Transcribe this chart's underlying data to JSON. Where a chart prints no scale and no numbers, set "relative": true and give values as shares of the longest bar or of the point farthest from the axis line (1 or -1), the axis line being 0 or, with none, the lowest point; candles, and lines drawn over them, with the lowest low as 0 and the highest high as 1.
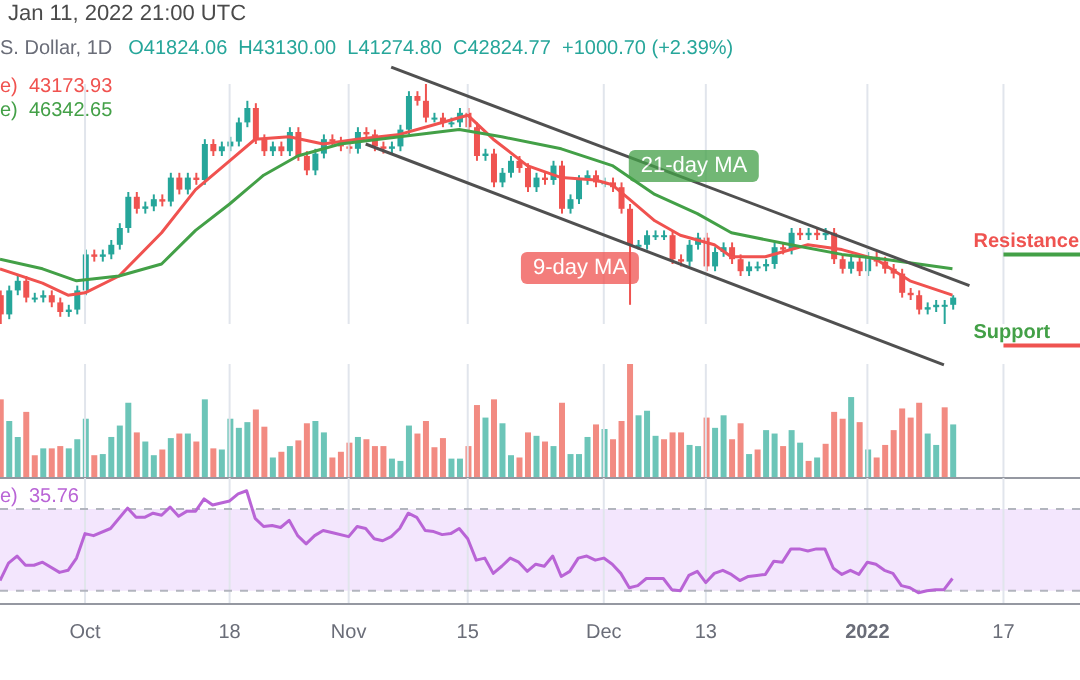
{
  "chart_data": [
    {
      "type": "candlestick",
      "relative": true,
      "title": "Jan 11, 2022 21:00 UTC",
      "subtitle": "S. Dollar, 1D",
      "annotations": [
        "O41824.06  H43130.00  L41274.80  C42824.77  +1000.70 (+2.39%)",
        "e)  43173.93",
        "e)  46342.65",
        "9-day MA",
        "21-day MA"
      ],
      "x": [
        "2021-09-21",
        "2021-09-22",
        "2021-09-23",
        "2021-09-24",
        "2021-09-25",
        "2021-09-26",
        "2021-09-27",
        "2021-09-28",
        "2021-09-29",
        "2021-09-30",
        "2021-10-01",
        "2021-10-02",
        "2021-10-03",
        "2021-10-04",
        "2021-10-05",
        "2021-10-06",
        "2021-10-07",
        "2021-10-08",
        "2021-10-09",
        "2021-10-10",
        "2021-10-11",
        "2021-10-12",
        "2021-10-13",
        "2021-10-14",
        "2021-10-15",
        "2021-10-16",
        "2021-10-17",
        "2021-10-18",
        "2021-10-19",
        "2021-10-20",
        "2021-10-21",
        "2021-10-22",
        "2021-10-23",
        "2021-10-24",
        "2021-10-25",
        "2021-10-26",
        "2021-10-27",
        "2021-10-28",
        "2021-10-29",
        "2021-10-30",
        "2021-10-31",
        "2021-11-01",
        "2021-11-02",
        "2021-11-03",
        "2021-11-04",
        "2021-11-05",
        "2021-11-06",
        "2021-11-07",
        "2021-11-08",
        "2021-11-09",
        "2021-11-10",
        "2021-11-11",
        "2021-11-12",
        "2021-11-13",
        "2021-11-14",
        "2021-11-15",
        "2021-11-16",
        "2021-11-17",
        "2021-11-18",
        "2021-11-19",
        "2021-11-20",
        "2021-11-21",
        "2021-11-22",
        "2021-11-23",
        "2021-11-24",
        "2021-11-25",
        "2021-11-26",
        "2021-11-27",
        "2021-11-28",
        "2021-11-29",
        "2021-11-30",
        "2021-12-01",
        "2021-12-02",
        "2021-12-03",
        "2021-12-04",
        "2021-12-05",
        "2021-12-06",
        "2021-12-07",
        "2021-12-08",
        "2021-12-09",
        "2021-12-10",
        "2021-12-11",
        "2021-12-12",
        "2021-12-13",
        "2021-12-14",
        "2021-12-15",
        "2021-12-16",
        "2021-12-17",
        "2021-12-18",
        "2021-12-19",
        "2021-12-20",
        "2021-12-21",
        "2021-12-22",
        "2021-12-23",
        "2021-12-24",
        "2021-12-25",
        "2021-12-26",
        "2021-12-27",
        "2021-12-28",
        "2021-12-29",
        "2021-12-30",
        "2021-12-31",
        "2022-01-01",
        "2022-01-02",
        "2022-01-03",
        "2022-01-04",
        "2022-01-05",
        "2022-01-06",
        "2022-01-07",
        "2022-01-08",
        "2022-01-09",
        "2022-01-10",
        "2022-01-11"
      ],
      "ohlc": [
        [
          0.12,
          0.14,
          0,
          0.04
        ],
        [
          0.04,
          0.16,
          0.02,
          0.14
        ],
        [
          0.14,
          0.2,
          0.12,
          0.18
        ],
        [
          0.18,
          0.2,
          0.09,
          0.11
        ],
        [
          0.11,
          0.13,
          0.09,
          0.11
        ],
        [
          0.11,
          0.14,
          0.09,
          0.12
        ],
        [
          0.12,
          0.14,
          0.07,
          0.09
        ],
        [
          0.09,
          0.11,
          0.03,
          0.05
        ],
        [
          0.05,
          0.08,
          0.03,
          0.06
        ],
        [
          0.06,
          0.16,
          0.04,
          0.14
        ],
        [
          0.14,
          0.31,
          0.12,
          0.29
        ],
        [
          0.29,
          0.31,
          0.26,
          0.28
        ],
        [
          0.28,
          0.31,
          0.26,
          0.29
        ],
        [
          0.29,
          0.35,
          0.27,
          0.33
        ],
        [
          0.33,
          0.42,
          0.31,
          0.4
        ],
        [
          0.4,
          0.55,
          0.38,
          0.53
        ],
        [
          0.53,
          0.55,
          0.46,
          0.48
        ],
        [
          0.48,
          0.51,
          0.46,
          0.49
        ],
        [
          0.49,
          0.54,
          0.47,
          0.52
        ],
        [
          0.52,
          0.54,
          0.49,
          0.51
        ],
        [
          0.51,
          0.63,
          0.49,
          0.61
        ],
        [
          0.61,
          0.63,
          0.54,
          0.56
        ],
        [
          0.56,
          0.63,
          0.54,
          0.61
        ],
        [
          0.61,
          0.63,
          0.58,
          0.6
        ],
        [
          0.6,
          0.77,
          0.58,
          0.75
        ],
        [
          0.75,
          0.77,
          0.7,
          0.72
        ],
        [
          0.72,
          0.76,
          0.7,
          0.74
        ],
        [
          0.74,
          0.78,
          0.72,
          0.76
        ],
        [
          0.76,
          0.86,
          0.74,
          0.84
        ],
        [
          0.84,
          0.93,
          0.82,
          0.9
        ],
        [
          0.9,
          0.92,
          0.75,
          0.77
        ],
        [
          0.77,
          0.79,
          0.7,
          0.72
        ],
        [
          0.72,
          0.76,
          0.7,
          0.74
        ],
        [
          0.74,
          0.76,
          0.7,
          0.72
        ],
        [
          0.72,
          0.82,
          0.7,
          0.8
        ],
        [
          0.8,
          0.82,
          0.68,
          0.7
        ],
        [
          0.7,
          0.72,
          0.62,
          0.64
        ],
        [
          0.64,
          0.73,
          0.62,
          0.71
        ],
        [
          0.71,
          0.79,
          0.69,
          0.77
        ],
        [
          0.77,
          0.79,
          0.74,
          0.76
        ],
        [
          0.76,
          0.78,
          0.72,
          0.74
        ],
        [
          0.74,
          0.76,
          0.71,
          0.73
        ],
        [
          0.73,
          0.82,
          0.71,
          0.8
        ],
        [
          0.8,
          0.82,
          0.77,
          0.79
        ],
        [
          0.79,
          0.81,
          0.72,
          0.74
        ],
        [
          0.74,
          0.76,
          0.71,
          0.73
        ],
        [
          0.73,
          0.76,
          0.71,
          0.74
        ],
        [
          0.74,
          0.83,
          0.72,
          0.81
        ],
        [
          0.81,
          0.97,
          0.79,
          0.95
        ],
        [
          0.95,
          0.97,
          0.91,
          0.93
        ],
        [
          0.93,
          1,
          0.84,
          0.86
        ],
        [
          0.86,
          0.88,
          0.84,
          0.86
        ],
        [
          0.86,
          0.88,
          0.82,
          0.84
        ],
        [
          0.84,
          0.86,
          0.82,
          0.84
        ],
        [
          0.84,
          0.9,
          0.82,
          0.88
        ],
        [
          0.88,
          0.9,
          0.8,
          0.82
        ],
        [
          0.82,
          0.84,
          0.68,
          0.7
        ],
        [
          0.7,
          0.73,
          0.68,
          0.71
        ],
        [
          0.71,
          0.73,
          0.57,
          0.59
        ],
        [
          0.59,
          0.65,
          0.57,
          0.63
        ],
        [
          0.63,
          0.7,
          0.61,
          0.68
        ],
        [
          0.68,
          0.7,
          0.63,
          0.65
        ],
        [
          0.65,
          0.67,
          0.55,
          0.57
        ],
        [
          0.57,
          0.63,
          0.55,
          0.61
        ],
        [
          0.61,
          0.63,
          0.58,
          0.6
        ],
        [
          0.6,
          0.68,
          0.58,
          0.66
        ],
        [
          0.66,
          0.68,
          0.46,
          0.48
        ],
        [
          0.48,
          0.54,
          0.46,
          0.52
        ],
        [
          0.52,
          0.62,
          0.5,
          0.6
        ],
        [
          0.6,
          0.64,
          0.58,
          0.62
        ],
        [
          0.62,
          0.64,
          0.57,
          0.59
        ],
        [
          0.59,
          0.61,
          0.57,
          0.59
        ],
        [
          0.59,
          0.61,
          0.55,
          0.57
        ],
        [
          0.57,
          0.59,
          0.46,
          0.48
        ],
        [
          0.48,
          0.5,
          0.08,
          0.33
        ],
        [
          0.33,
          0.35,
          0.31,
          0.33
        ],
        [
          0.33,
          0.39,
          0.31,
          0.37
        ],
        [
          0.37,
          0.39,
          0.35,
          0.37
        ],
        [
          0.37,
          0.39,
          0.35,
          0.37
        ],
        [
          0.37,
          0.39,
          0.25,
          0.27
        ],
        [
          0.27,
          0.29,
          0.24,
          0.26
        ],
        [
          0.26,
          0.35,
          0.24,
          0.33
        ],
        [
          0.33,
          0.38,
          0.31,
          0.36
        ],
        [
          0.36,
          0.38,
          0.22,
          0.24
        ],
        [
          0.24,
          0.32,
          0.22,
          0.3
        ],
        [
          0.3,
          0.34,
          0.28,
          0.32
        ],
        [
          0.32,
          0.34,
          0.25,
          0.27
        ],
        [
          0.27,
          0.29,
          0.2,
          0.22
        ],
        [
          0.22,
          0.26,
          0.2,
          0.24
        ],
        [
          0.24,
          0.26,
          0.22,
          0.24
        ],
        [
          0.24,
          0.27,
          0.22,
          0.25
        ],
        [
          0.25,
          0.34,
          0.23,
          0.32
        ],
        [
          0.32,
          0.34,
          0.29,
          0.31
        ],
        [
          0.31,
          0.4,
          0.29,
          0.38
        ],
        [
          0.38,
          0.4,
          0.35,
          0.37
        ],
        [
          0.37,
          0.4,
          0.35,
          0.38
        ],
        [
          0.38,
          0.4,
          0.35,
          0.37
        ],
        [
          0.37,
          0.4,
          0.35,
          0.38
        ],
        [
          0.38,
          0.4,
          0.25,
          0.27
        ],
        [
          0.27,
          0.29,
          0.21,
          0.23
        ],
        [
          0.23,
          0.28,
          0.21,
          0.26
        ],
        [
          0.26,
          0.28,
          0.2,
          0.22
        ],
        [
          0.22,
          0.3,
          0.2,
          0.28
        ],
        [
          0.28,
          0.3,
          0.24,
          0.26
        ],
        [
          0.26,
          0.28,
          0.21,
          0.23
        ],
        [
          0.23,
          0.25,
          0.19,
          0.21
        ],
        [
          0.21,
          0.23,
          0.11,
          0.13
        ],
        [
          0.13,
          0.15,
          0.1,
          0.12
        ],
        [
          0.12,
          0.14,
          0.04,
          0.06
        ],
        [
          0.06,
          0.09,
          0.04,
          0.07
        ],
        [
          0.07,
          0.1,
          0.05,
          0.08
        ],
        [
          0.08,
          0.1,
          0,
          0.08
        ],
        [
          0.08,
          0.12,
          0.06,
          0.11
        ]
      ],
      "series": [
        {
          "type": "line",
          "color": "#f0524f",
          "x": [
            "2021-09-21",
            "2021-09-26",
            "2021-09-29",
            "2021-10-01",
            "2021-10-05",
            "2021-10-10",
            "2021-10-14",
            "2021-10-18",
            "2021-10-21",
            "2021-10-25",
            "2021-10-29",
            "2021-11-02",
            "2021-11-07",
            "2021-11-10",
            "2021-11-15",
            "2021-11-18",
            "2021-11-22",
            "2021-11-26",
            "2021-11-30",
            "2021-12-02",
            "2021-12-04",
            "2021-12-07",
            "2021-12-10",
            "2021-12-14",
            "2021-12-16",
            "2021-12-20",
            "2021-12-25",
            "2021-12-29",
            "2022-01-02",
            "2022-01-06",
            "2022-01-11"
          ],
          "values": [
            0.23,
            0.17,
            0.12,
            0.13,
            0.2,
            0.38,
            0.56,
            0.68,
            0.77,
            0.78,
            0.75,
            0.77,
            0.79,
            0.82,
            0.87,
            0.77,
            0.66,
            0.61,
            0.6,
            0.58,
            0.52,
            0.43,
            0.37,
            0.33,
            0.28,
            0.28,
            0.33,
            0.31,
            0.27,
            0.18,
            0.12
          ]
        },
        {
          "type": "line",
          "color": "#43a047",
          "x": [
            "2021-09-21",
            "2021-09-26",
            "2021-09-30",
            "2021-10-05",
            "2021-10-10",
            "2021-10-14",
            "2021-10-18",
            "2021-10-22",
            "2021-10-26",
            "2021-10-31",
            "2021-11-07",
            "2021-11-14",
            "2021-11-19",
            "2021-11-26",
            "2021-12-02",
            "2021-12-07",
            "2021-12-12",
            "2021-12-16",
            "2021-12-23",
            "2021-12-29",
            "2022-01-03",
            "2022-01-11"
          ],
          "values": [
            0.27,
            0.23,
            0.18,
            0.2,
            0.25,
            0.39,
            0.5,
            0.62,
            0.7,
            0.75,
            0.78,
            0.81,
            0.78,
            0.73,
            0.66,
            0.54,
            0.46,
            0.38,
            0.33,
            0.29,
            0.27,
            0.23
          ]
        },
        {
          "type": "line",
          "color": "#505050",
          "x": [
            "2021-11-06",
            "2022-01-13"
          ],
          "values": [
            1.07,
            0.16
          ]
        },
        {
          "type": "line",
          "color": "#505050",
          "x": [
            "2021-11-03",
            "2022-01-10"
          ],
          "values": [
            0.75,
            -0.17
          ]
        }
      ],
      "ref_lines": [
        {
          "axis": "y",
          "value": 0.29,
          "label": "Resistance",
          "color": "#43a047"
        },
        {
          "axis": "y",
          "value": -0.09,
          "label": "Support",
          "color": "#ef5350"
        }
      ],
      "xlim": [
        "2021-09-21",
        "2022-01-26"
      ],
      "xticks": [
        {
          "value": "2021-10-01",
          "label": null
        },
        {
          "value": "2021-10-18",
          "label": null
        },
        {
          "value": "2021-11-01",
          "label": null
        },
        {
          "value": "2021-11-15",
          "label": null
        },
        {
          "value": "2021-12-01",
          "label": null
        },
        {
          "value": "2021-12-13",
          "label": null
        },
        {
          "value": "2022-01-01",
          "label": null
        },
        {
          "value": "2022-01-17",
          "label": null
        }
      ],
      "grid": "x",
      "tick_labels": false
    },
    {
      "type": "bar",
      "relative": true,
      "x": [
        "2021-09-21",
        "2021-09-22",
        "2021-09-23",
        "2021-09-24",
        "2021-09-25",
        "2021-09-26",
        "2021-09-27",
        "2021-09-28",
        "2021-09-29",
        "2021-09-30",
        "2021-10-01",
        "2021-10-02",
        "2021-10-03",
        "2021-10-04",
        "2021-10-05",
        "2021-10-06",
        "2021-10-07",
        "2021-10-08",
        "2021-10-09",
        "2021-10-10",
        "2021-10-11",
        "2021-10-12",
        "2021-10-13",
        "2021-10-14",
        "2021-10-15",
        "2021-10-16",
        "2021-10-17",
        "2021-10-18",
        "2021-10-19",
        "2021-10-20",
        "2021-10-21",
        "2021-10-22",
        "2021-10-23",
        "2021-10-24",
        "2021-10-25",
        "2021-10-26",
        "2021-10-27",
        "2021-10-28",
        "2021-10-29",
        "2021-10-30",
        "2021-10-31",
        "2021-11-01",
        "2021-11-02",
        "2021-11-03",
        "2021-11-04",
        "2021-11-05",
        "2021-11-06",
        "2021-11-07",
        "2021-11-08",
        "2021-11-09",
        "2021-11-10",
        "2021-11-11",
        "2021-11-12",
        "2021-11-13",
        "2021-11-14",
        "2021-11-15",
        "2021-11-16",
        "2021-11-17",
        "2021-11-18",
        "2021-11-19",
        "2021-11-20",
        "2021-11-21",
        "2021-11-22",
        "2021-11-23",
        "2021-11-24",
        "2021-11-25",
        "2021-11-26",
        "2021-11-27",
        "2021-11-28",
        "2021-11-29",
        "2021-11-30",
        "2021-12-01",
        "2021-12-02",
        "2021-12-03",
        "2021-12-04",
        "2021-12-05",
        "2021-12-06",
        "2021-12-07",
        "2021-12-08",
        "2021-12-09",
        "2021-12-10",
        "2021-12-11",
        "2021-12-12",
        "2021-12-13",
        "2021-12-14",
        "2021-12-15",
        "2021-12-16",
        "2021-12-17",
        "2021-12-18",
        "2021-12-19",
        "2021-12-20",
        "2021-12-21",
        "2021-12-22",
        "2021-12-23",
        "2021-12-24",
        "2021-12-25",
        "2021-12-26",
        "2021-12-27",
        "2021-12-28",
        "2021-12-29",
        "2021-12-30",
        "2021-12-31",
        "2022-01-01",
        "2022-01-02",
        "2022-01-03",
        "2022-01-04",
        "2022-01-05",
        "2022-01-06",
        "2022-01-07",
        "2022-01-08",
        "2022-01-09",
        "2022-01-10",
        "2022-01-11"
      ],
      "values": [
        0.69,
        0.5,
        0.36,
        0.58,
        0.2,
        0.26,
        0.26,
        0.28,
        0.26,
        0.34,
        0.52,
        0.2,
        0.21,
        0.36,
        0.46,
        0.66,
        0.4,
        0.32,
        0.2,
        0.25,
        0.35,
        0.39,
        0.39,
        0.32,
        0.69,
        0.26,
        0.25,
        0.52,
        0.44,
        0.49,
        0.6,
        0.45,
        0.18,
        0.23,
        0.28,
        0.33,
        0.48,
        0.5,
        0.4,
        0.18,
        0.23,
        0.31,
        0.36,
        0.34,
        0.28,
        0.28,
        0.17,
        0.15,
        0.46,
        0.39,
        0.5,
        0.27,
        0.35,
        0.17,
        0.17,
        0.28,
        0.64,
        0.53,
        0.69,
        0.48,
        0.2,
        0.18,
        0.4,
        0.37,
        0.32,
        0.28,
        0.66,
        0.21,
        0.21,
        0.36,
        0.47,
        0.43,
        0.34,
        0.5,
        1,
        0.55,
        0.59,
        0.37,
        0.34,
        0.4,
        0.4,
        0.29,
        0.28,
        0.53,
        0.44,
        0.55,
        0.34,
        0.48,
        0.21,
        0.25,
        0.42,
        0.39,
        0.28,
        0.42,
        0.31,
        0.15,
        0.18,
        0.3,
        0.58,
        0.52,
        0.71,
        0.49,
        0.25,
        0.18,
        0.29,
        0.42,
        0.61,
        0.53,
        0.66,
        0.39,
        0.29,
        0.62,
        0.47
      ],
      "colors": [
        "#f28b82",
        "#6cc5b8",
        "#6cc5b8",
        "#f28b82",
        "#f28b82",
        "#6cc5b8",
        "#f28b82",
        "#f28b82",
        "#6cc5b8",
        "#6cc5b8",
        "#6cc5b8",
        "#f28b82",
        "#6cc5b8",
        "#6cc5b8",
        "#6cc5b8",
        "#6cc5b8",
        "#f28b82",
        "#6cc5b8",
        "#6cc5b8",
        "#f28b82",
        "#6cc5b8",
        "#f28b82",
        "#6cc5b8",
        "#f28b82",
        "#6cc5b8",
        "#f28b82",
        "#6cc5b8",
        "#6cc5b8",
        "#6cc5b8",
        "#6cc5b8",
        "#f28b82",
        "#f28b82",
        "#6cc5b8",
        "#f28b82",
        "#6cc5b8",
        "#f28b82",
        "#f28b82",
        "#6cc5b8",
        "#6cc5b8",
        "#f28b82",
        "#f28b82",
        "#f28b82",
        "#6cc5b8",
        "#f28b82",
        "#f28b82",
        "#f28b82",
        "#6cc5b8",
        "#6cc5b8",
        "#6cc5b8",
        "#f28b82",
        "#f28b82",
        "#f28b82",
        "#f28b82",
        "#6cc5b8",
        "#6cc5b8",
        "#f28b82",
        "#f28b82",
        "#6cc5b8",
        "#f28b82",
        "#6cc5b8",
        "#6cc5b8",
        "#f28b82",
        "#f28b82",
        "#6cc5b8",
        "#f28b82",
        "#6cc5b8",
        "#f28b82",
        "#6cc5b8",
        "#6cc5b8",
        "#6cc5b8",
        "#f28b82",
        "#6cc5b8",
        "#f28b82",
        "#f28b82",
        "#f28b82",
        "#6cc5b8",
        "#6cc5b8",
        "#6cc5b8",
        "#f28b82",
        "#f28b82",
        "#f28b82",
        "#6cc5b8",
        "#6cc5b8",
        "#f28b82",
        "#6cc5b8",
        "#6cc5b8",
        "#f28b82",
        "#f28b82",
        "#6cc5b8",
        "#f28b82",
        "#6cc5b8",
        "#6cc5b8",
        "#f28b82",
        "#6cc5b8",
        "#6cc5b8",
        "#f28b82",
        "#6cc5b8",
        "#f28b82",
        "#f28b82",
        "#f28b82",
        "#6cc5b8",
        "#f28b82",
        "#6cc5b8",
        "#f28b82",
        "#f28b82",
        "#f28b82",
        "#f28b82",
        "#f28b82",
        "#f28b82",
        "#6cc5b8",
        "#6cc5b8",
        "#f28b82",
        "#6cc5b8"
      ],
      "xlim": [
        "2021-09-21",
        "2022-01-26"
      ],
      "xticks": [
        {
          "value": "2021-10-01",
          "label": null
        },
        {
          "value": "2021-10-18",
          "label": null
        },
        {
          "value": "2021-11-01",
          "label": null
        },
        {
          "value": "2021-11-15",
          "label": null
        },
        {
          "value": "2021-12-01",
          "label": null
        },
        {
          "value": "2021-12-13",
          "label": null
        },
        {
          "value": "2022-01-01",
          "label": null
        },
        {
          "value": "2022-01-17",
          "label": null
        }
      ],
      "grid": "x",
      "tick_labels": false
    },
    {
      "type": "line",
      "relative": true,
      "annotations": [
        "e)  35.76"
      ],
      "series": [
        {
          "color": "#b964d6",
          "x": [
            "2021-09-21",
            "2021-09-22",
            "2021-09-23",
            "2021-09-24",
            "2021-09-25",
            "2021-09-26",
            "2021-09-28",
            "2021-09-29",
            "2021-09-30",
            "2021-10-01",
            "2021-10-02",
            "2021-10-04",
            "2021-10-06",
            "2021-10-07",
            "2021-10-08",
            "2021-10-09",
            "2021-10-10",
            "2021-10-11",
            "2021-10-12",
            "2021-10-13",
            "2021-10-14",
            "2021-10-15",
            "2021-10-16",
            "2021-10-18",
            "2021-10-19",
            "2021-10-20",
            "2021-10-21",
            "2021-10-22",
            "2021-10-23",
            "2021-10-24",
            "2021-10-25",
            "2021-10-26",
            "2021-10-27",
            "2021-10-28",
            "2021-10-29",
            "2021-10-30",
            "2021-11-01",
            "2021-11-02",
            "2021-11-03",
            "2021-11-04",
            "2021-11-05",
            "2021-11-06",
            "2021-11-07",
            "2021-11-08",
            "2021-11-09",
            "2021-11-10",
            "2021-11-11",
            "2021-11-12",
            "2021-11-13",
            "2021-11-14",
            "2021-11-15",
            "2021-11-16",
            "2021-11-17",
            "2021-11-18",
            "2021-11-19",
            "2021-11-20",
            "2021-11-21",
            "2021-11-22",
            "2021-11-23",
            "2021-11-24",
            "2021-11-25",
            "2021-11-26",
            "2021-11-27",
            "2021-11-28",
            "2021-11-29",
            "2021-11-30",
            "2021-12-01",
            "2021-12-02",
            "2021-12-03",
            "2021-12-04",
            "2021-12-05",
            "2021-12-06",
            "2021-12-07",
            "2021-12-08",
            "2021-12-09",
            "2021-12-10",
            "2021-12-11",
            "2021-12-12",
            "2021-12-13",
            "2021-12-14",
            "2021-12-15",
            "2021-12-16",
            "2021-12-17",
            "2021-12-18",
            "2021-12-19",
            "2021-12-20",
            "2021-12-21",
            "2021-12-22",
            "2021-12-23",
            "2021-12-24",
            "2021-12-25",
            "2021-12-26",
            "2021-12-27",
            "2021-12-28",
            "2021-12-29",
            "2021-12-30",
            "2021-12-31",
            "2022-01-01",
            "2022-01-02",
            "2022-01-03",
            "2022-01-04",
            "2022-01-05",
            "2022-01-06",
            "2022-01-07",
            "2022-01-08",
            "2022-01-09",
            "2022-01-10",
            "2022-01-11"
          ],
          "values": [
            0.12,
            0.29,
            0.36,
            0.27,
            0.27,
            0.3,
            0.2,
            0.22,
            0.34,
            0.58,
            0.56,
            0.63,
            0.83,
            0.74,
            0.74,
            0.78,
            0.76,
            0.84,
            0.75,
            0.8,
            0.8,
            0.92,
            0.86,
            0.9,
            0.97,
            1,
            0.73,
            0.65,
            0.66,
            0.64,
            0.71,
            0.56,
            0.48,
            0.56,
            0.61,
            0.59,
            0.55,
            0.65,
            0.63,
            0.53,
            0.51,
            0.55,
            0.63,
            0.78,
            0.74,
            0.61,
            0.6,
            0.57,
            0.58,
            0.63,
            0.53,
            0.32,
            0.34,
            0.19,
            0.26,
            0.34,
            0.3,
            0.21,
            0.28,
            0.26,
            0.36,
            0.16,
            0.21,
            0.34,
            0.36,
            0.32,
            0.34,
            0.28,
            0.19,
            0.05,
            0.07,
            0.14,
            0.14,
            0.14,
            0.03,
            0.02,
            0.17,
            0.21,
            0.1,
            0.19,
            0.22,
            0.18,
            0.12,
            0.16,
            0.17,
            0.18,
            0.31,
            0.3,
            0.43,
            0.43,
            0.41,
            0.43,
            0.43,
            0.24,
            0.18,
            0.22,
            0.18,
            0.3,
            0.28,
            0.22,
            0.19,
            0.07,
            0.05,
            0,
            0.02,
            0.03,
            0.03,
            0.14
          ]
        }
      ],
      "bands": [
        {
          "axis": "y",
          "from": 0.02,
          "to": 0.82,
          "color": "#f3e6fd"
        }
      ],
      "ref_lines": [
        {
          "axis": "y",
          "value": 0.82,
          "color": "#b2b5be",
          "line_style": "dashed"
        },
        {
          "axis": "y",
          "value": 0.02,
          "color": "#b2b5be",
          "line_style": "dashed"
        }
      ],
      "xlim": [
        "2021-09-21",
        "2022-01-26"
      ],
      "xticks": [
        {
          "value": "2021-10-01",
          "label": "Oct"
        },
        {
          "value": "2021-10-18",
          "label": "18"
        },
        {
          "value": "2021-11-01",
          "label": "Nov"
        },
        {
          "value": "2021-11-15",
          "label": "15"
        },
        {
          "value": "2021-12-01",
          "label": "Dec"
        },
        {
          "value": "2021-12-13",
          "label": "13"
        },
        {
          "value": "2022-01-01",
          "label": "2022"
        },
        {
          "value": "2022-01-17",
          "label": "17"
        }
      ],
      "grid": "x",
      "tick_labels": "x"
    }
  ]
}
